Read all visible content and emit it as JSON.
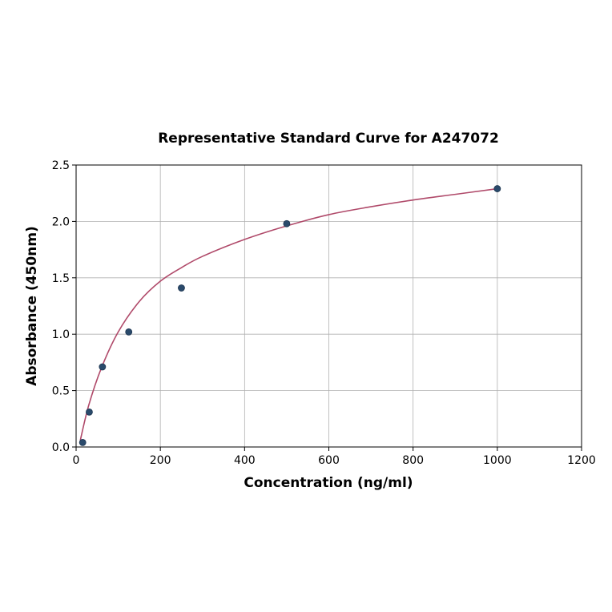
{
  "chart_data": {
    "type": "scatter",
    "title": "Representative Standard Curve for A247072",
    "xlabel": "Concentration (ng/ml)",
    "ylabel": "Absorbance (450nm)",
    "xlim": [
      0,
      1200
    ],
    "ylim": [
      0,
      2.5
    ],
    "x_ticks": [
      "0",
      "200",
      "400",
      "600",
      "800",
      "1000",
      "1200"
    ],
    "y_ticks": [
      "0.0",
      "0.5",
      "1.0",
      "1.5",
      "2.0",
      "2.5"
    ],
    "grid": true,
    "series": [
      {
        "x": [
          15.6,
          31.25,
          62.5,
          125,
          250,
          500,
          1000
        ],
        "y": [
          0.04,
          0.31,
          0.71,
          1.02,
          1.41,
          1.98,
          2.29
        ],
        "color": "#2a4a6b"
      }
    ],
    "fit_curve": {
      "type": "line",
      "color": "#b04a6a",
      "x": [
        10,
        30,
        60,
        100,
        150,
        200,
        250,
        300,
        400,
        500,
        600,
        700,
        800,
        900,
        1000
      ],
      "y": [
        0.06,
        0.37,
        0.7,
        1.02,
        1.29,
        1.47,
        1.59,
        1.69,
        1.84,
        1.96,
        2.06,
        2.13,
        2.19,
        2.24,
        2.29
      ]
    }
  }
}
